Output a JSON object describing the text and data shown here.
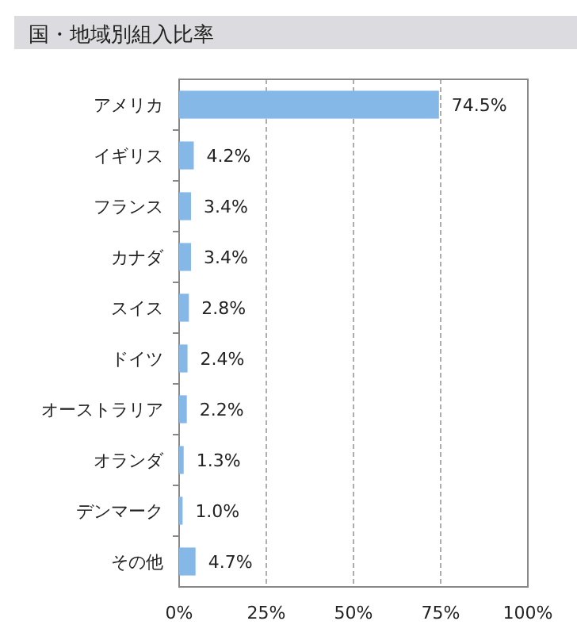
{
  "chart_data": {
    "type": "bar",
    "orientation": "horizontal",
    "title": "国・地域別組入比率",
    "categories": [
      "アメリカ",
      "イギリス",
      "フランス",
      "カナダ",
      "スイス",
      "ドイツ",
      "オーストラリア",
      "オランダ",
      "デンマーク",
      "その他"
    ],
    "values": [
      74.5,
      4.2,
      3.4,
      3.4,
      2.8,
      2.4,
      2.2,
      1.3,
      1.0,
      4.7
    ],
    "value_labels": [
      "74.5%",
      "4.2%",
      "3.4%",
      "3.4%",
      "2.8%",
      "2.4%",
      "2.2%",
      "1.3%",
      "1.0%",
      "4.7%"
    ],
    "color": "#85b8e6",
    "xlim": [
      0,
      100
    ],
    "xticks": [
      {
        "value": 0,
        "label": "0%"
      },
      {
        "value": 25,
        "label": "25%"
      },
      {
        "value": 50,
        "label": "50%"
      },
      {
        "value": 75,
        "label": "75%"
      },
      {
        "value": 100,
        "label": "100%"
      }
    ],
    "grid": "x"
  }
}
